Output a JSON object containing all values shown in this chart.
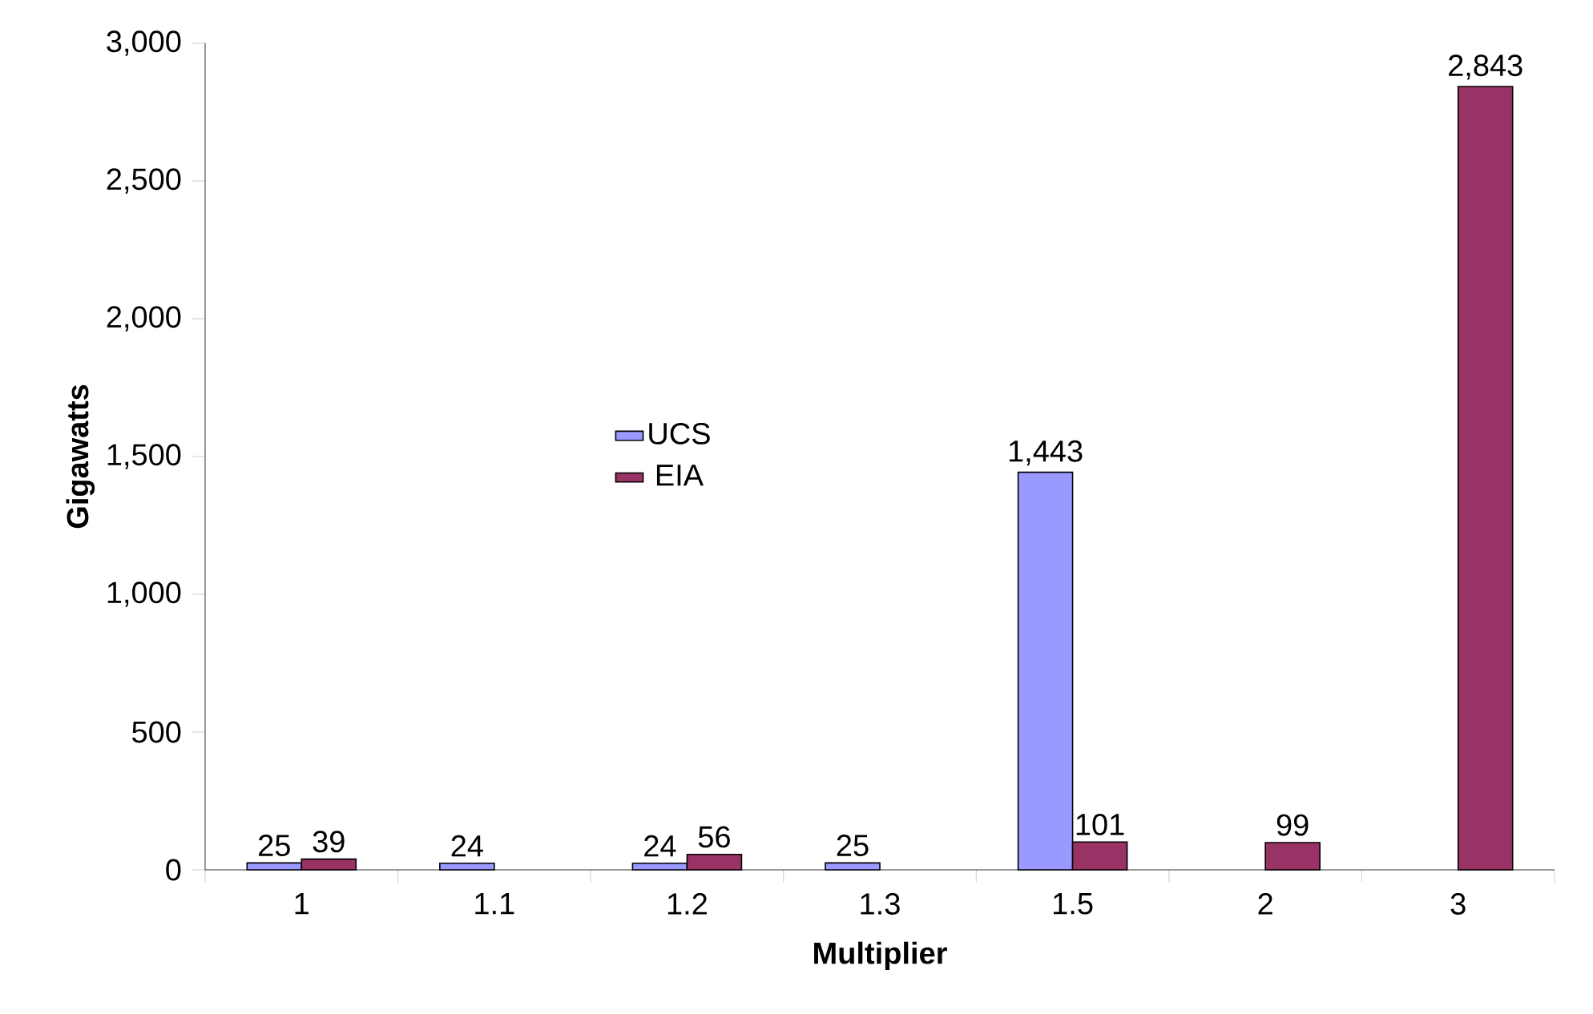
{
  "chart_data": {
    "type": "bar",
    "xlabel": "Multiplier",
    "ylabel": "Gigawatts",
    "categories": [
      "1",
      "1.1",
      "1.2",
      "1.3",
      "1.5",
      "2",
      "3"
    ],
    "series": [
      {
        "name": "UCS",
        "color": "#9999ff",
        "values": [
          25,
          24,
          24,
          25,
          1443,
          null,
          null
        ],
        "value_labels": [
          "25",
          "24",
          "24",
          "25",
          "1,443",
          null,
          null
        ]
      },
      {
        "name": "EIA",
        "color": "#993366",
        "values": [
          39,
          null,
          56,
          null,
          101,
          99,
          2843
        ],
        "value_labels": [
          "39",
          null,
          "56",
          null,
          "101",
          "99",
          "2,843"
        ]
      }
    ],
    "ylim": [
      0,
      3000
    ],
    "yticks": [
      0,
      500,
      {
        "value": 1000,
        "label": "1,000"
      },
      {
        "value": 1500,
        "label": "1,500"
      },
      {
        "value": 2000,
        "label": "2,000"
      },
      {
        "value": 2500,
        "label": "2,500"
      },
      {
        "value": 3000,
        "label": "3,000"
      }
    ],
    "grid": false,
    "legend": "left"
  }
}
